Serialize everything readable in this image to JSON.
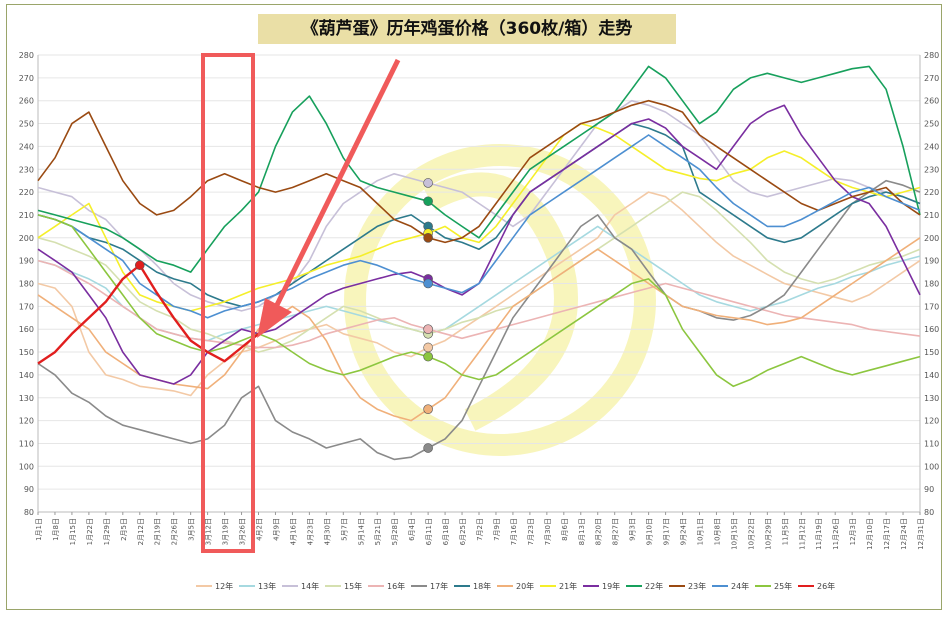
{
  "title": "《葫芦蛋》历年鸡蛋价格（360枚/箱）走势",
  "colors": {
    "frame": "#9aa56a",
    "title_bg": "#eadfa6",
    "highlight_box": "#f05a5a",
    "arrow": "#f05a5a",
    "watermark": "#f7f3b0"
  },
  "chart_data": {
    "type": "line",
    "title": "《葫芦蛋》历年鸡蛋价格（360枚/箱）走势",
    "xlabel": "",
    "ylabel": "",
    "ylim": [
      80,
      280
    ],
    "yticks": [
      80,
      90,
      100,
      110,
      120,
      130,
      140,
      150,
      160,
      170,
      180,
      190,
      200,
      210,
      220,
      230,
      240,
      250,
      260,
      270,
      280
    ],
    "grid": true,
    "legend_position": "bottom",
    "x_tick_labels": [
      "1月1日",
      "1月8日",
      "1月15日",
      "1月22日",
      "1月29日",
      "2月5日",
      "2月12日",
      "2月19日",
      "2月26日",
      "3月5日",
      "3月12日",
      "3月19日",
      "3月26日",
      "4月2日",
      "4月9日",
      "4月16日",
      "4月23日",
      "4月30日",
      "5月7日",
      "5月14日",
      "5月21日",
      "5月28日",
      "6月4日",
      "6月11日",
      "6月18日",
      "6月25日",
      "7月2日",
      "7月9日",
      "7月16日",
      "7月23日",
      "7月30日",
      "8月6日",
      "8月13日",
      "8月20日",
      "8月27日",
      "9月3日",
      "9月10日",
      "9月17日",
      "9月24日",
      "10月1日",
      "10月8日",
      "10月15日",
      "10月22日",
      "10月29日",
      "11月5日",
      "11月12日",
      "11月19日",
      "11月26日",
      "12月3日",
      "12月10日",
      "12月17日",
      "12月24日",
      "12月31日"
    ],
    "series": [
      {
        "name": "12年",
        "color": "#f3c9a5",
        "values": [
          180,
          178,
          170,
          150,
          140,
          138,
          135,
          134,
          133,
          131,
          140,
          146,
          150,
          152,
          155,
          158,
          160,
          162,
          158,
          156,
          154,
          150,
          148,
          152,
          155,
          160,
          165,
          170,
          175,
          180,
          185,
          190,
          195,
          200,
          210,
          215,
          220,
          218,
          212,
          205,
          198,
          192,
          188,
          184,
          180,
          178,
          176,
          174,
          172,
          175,
          180,
          185,
          190
        ]
      },
      {
        "name": "13年",
        "color": "#a6d9e0",
        "values": [
          190,
          188,
          185,
          182,
          178,
          170,
          165,
          160,
          158,
          156,
          155,
          158,
          160,
          162,
          164,
          166,
          168,
          170,
          168,
          166,
          164,
          162,
          160,
          158,
          160,
          165,
          170,
          175,
          180,
          185,
          190,
          195,
          200,
          205,
          200,
          195,
          190,
          185,
          180,
          175,
          172,
          170,
          168,
          170,
          172,
          175,
          178,
          180,
          183,
          185,
          188,
          190,
          192
        ]
      },
      {
        "name": "14年",
        "color": "#c7c0d8",
        "values": [
          222,
          220,
          218,
          212,
          208,
          200,
          195,
          188,
          180,
          175,
          172,
          170,
          168,
          170,
          175,
          180,
          190,
          205,
          215,
          220,
          225,
          228,
          226,
          224,
          222,
          220,
          215,
          210,
          205,
          210,
          220,
          230,
          240,
          250,
          255,
          260,
          258,
          255,
          250,
          245,
          235,
          225,
          220,
          218,
          220,
          222,
          224,
          226,
          225,
          222,
          220,
          218,
          215
        ]
      },
      {
        "name": "15年",
        "color": "#d5e0b0",
        "values": [
          200,
          198,
          195,
          192,
          188,
          180,
          172,
          168,
          165,
          160,
          158,
          155,
          153,
          150,
          152,
          155,
          160,
          165,
          170,
          168,
          165,
          162,
          160,
          158,
          160,
          163,
          165,
          168,
          170,
          175,
          180,
          185,
          190,
          195,
          200,
          205,
          210,
          215,
          220,
          218,
          212,
          205,
          198,
          190,
          185,
          182,
          180,
          182,
          185,
          188,
          190,
          192,
          195
        ]
      },
      {
        "name": "16年",
        "color": "#ecb4b4",
        "values": [
          190,
          188,
          184,
          180,
          175,
          170,
          165,
          160,
          158,
          156,
          155,
          154,
          153,
          152,
          152,
          153,
          155,
          158,
          160,
          162,
          164,
          165,
          162,
          160,
          158,
          156,
          158,
          160,
          162,
          164,
          166,
          168,
          170,
          172,
          174,
          176,
          178,
          180,
          178,
          176,
          174,
          172,
          170,
          168,
          166,
          165,
          164,
          163,
          162,
          160,
          159,
          158,
          157
        ]
      },
      {
        "name": "17年",
        "color": "#8a8a8a",
        "values": [
          145,
          140,
          132,
          128,
          122,
          118,
          116,
          114,
          112,
          110,
          112,
          118,
          130,
          135,
          120,
          115,
          112,
          108,
          110,
          112,
          106,
          103,
          104,
          108,
          112,
          120,
          135,
          150,
          165,
          175,
          185,
          195,
          205,
          210,
          200,
          195,
          185,
          175,
          170,
          168,
          165,
          164,
          166,
          170,
          175,
          185,
          195,
          205,
          215,
          220,
          225,
          223,
          220
        ]
      },
      {
        "name": "18年",
        "color": "#2d7a8c",
        "values": [
          210,
          208,
          205,
          200,
          198,
          195,
          190,
          185,
          182,
          180,
          175,
          172,
          170,
          172,
          175,
          180,
          185,
          190,
          195,
          200,
          205,
          208,
          210,
          205,
          200,
          198,
          195,
          200,
          210,
          220,
          225,
          230,
          235,
          240,
          245,
          250,
          248,
          245,
          240,
          220,
          215,
          210,
          205,
          200,
          198,
          200,
          205,
          210,
          215,
          218,
          220,
          218,
          215
        ]
      },
      {
        "name": "20年",
        "color": "#f0b07a",
        "values": [
          175,
          170,
          165,
          160,
          150,
          145,
          140,
          138,
          136,
          135,
          134,
          140,
          150,
          160,
          165,
          170,
          165,
          155,
          140,
          130,
          125,
          122,
          120,
          125,
          130,
          140,
          150,
          160,
          170,
          175,
          180,
          185,
          190,
          195,
          190,
          185,
          180,
          175,
          170,
          168,
          166,
          165,
          164,
          162,
          163,
          165,
          170,
          175,
          180,
          185,
          190,
          195,
          200
        ]
      },
      {
        "name": "21年",
        "color": "#f5ef2a",
        "values": [
          200,
          205,
          210,
          215,
          200,
          185,
          175,
          172,
          170,
          168,
          170,
          172,
          175,
          178,
          180,
          182,
          185,
          188,
          190,
          192,
          195,
          198,
          200,
          202,
          205,
          200,
          198,
          205,
          215,
          225,
          235,
          245,
          250,
          248,
          245,
          240,
          235,
          230,
          228,
          226,
          225,
          228,
          230,
          235,
          238,
          235,
          230,
          225,
          222,
          220,
          218,
          220,
          222
        ]
      },
      {
        "name": "19年",
        "color": "#7a2ea0",
        "values": [
          195,
          190,
          185,
          175,
          165,
          150,
          140,
          138,
          136,
          140,
          150,
          155,
          160,
          158,
          160,
          165,
          170,
          175,
          178,
          180,
          182,
          184,
          185,
          182,
          178,
          175,
          180,
          195,
          210,
          220,
          225,
          230,
          235,
          240,
          245,
          250,
          252,
          248,
          240,
          235,
          230,
          240,
          250,
          255,
          258,
          245,
          235,
          225,
          218,
          215,
          205,
          190,
          175
        ]
      },
      {
        "name": "22年",
        "color": "#17a05c",
        "values": [
          212,
          210,
          208,
          206,
          204,
          200,
          195,
          190,
          188,
          185,
          195,
          205,
          212,
          220,
          240,
          255,
          262,
          250,
          235,
          225,
          222,
          220,
          218,
          216,
          210,
          205,
          200,
          210,
          220,
          230,
          235,
          240,
          245,
          250,
          255,
          265,
          275,
          270,
          260,
          250,
          255,
          265,
          270,
          272,
          270,
          268,
          270,
          272,
          274,
          275,
          265,
          240,
          210
        ]
      },
      {
        "name": "23年",
        "color": "#9a4a12",
        "values": [
          225,
          235,
          250,
          255,
          240,
          225,
          215,
          210,
          212,
          218,
          225,
          228,
          225,
          222,
          220,
          222,
          225,
          228,
          225,
          222,
          215,
          208,
          205,
          200,
          198,
          200,
          205,
          215,
          225,
          235,
          240,
          245,
          250,
          252,
          255,
          258,
          260,
          258,
          255,
          245,
          240,
          235,
          230,
          225,
          220,
          215,
          212,
          215,
          218,
          220,
          222,
          215,
          210
        ]
      },
      {
        "name": "24年",
        "color": "#4d8fd1",
        "values": [
          210,
          208,
          205,
          200,
          195,
          190,
          180,
          175,
          170,
          168,
          165,
          168,
          170,
          172,
          175,
          178,
          182,
          185,
          188,
          190,
          188,
          185,
          182,
          180,
          178,
          176,
          180,
          190,
          200,
          210,
          215,
          220,
          225,
          230,
          235,
          240,
          245,
          240,
          235,
          230,
          222,
          215,
          210,
          205,
          205,
          208,
          212,
          216,
          220,
          222,
          218,
          215,
          212
        ]
      },
      {
        "name": "25年",
        "color": "#8cc63f",
        "values": [
          210,
          208,
          205,
          195,
          185,
          175,
          165,
          158,
          155,
          152,
          150,
          152,
          155,
          158,
          155,
          150,
          145,
          142,
          140,
          142,
          145,
          148,
          150,
          148,
          145,
          140,
          138,
          140,
          145,
          150,
          155,
          160,
          165,
          170,
          175,
          180,
          182,
          175,
          160,
          150,
          140,
          135,
          138,
          142,
          145,
          148,
          145,
          142,
          140,
          142,
          144,
          146,
          148
        ]
      },
      {
        "name": "26年",
        "color": "#e11e1e",
        "values": [
          145,
          150,
          158,
          165,
          172,
          182,
          188,
          176,
          165,
          155,
          150,
          146,
          152,
          158
        ]
      }
    ]
  },
  "legend": [
    {
      "label": "12年",
      "color": "#f3c9a5"
    },
    {
      "label": "13年",
      "color": "#a6d9e0"
    },
    {
      "label": "14年",
      "color": "#c7c0d8"
    },
    {
      "label": "15年",
      "color": "#d5e0b0"
    },
    {
      "label": "16年",
      "color": "#ecb4b4"
    },
    {
      "label": "17年",
      "color": "#8a8a8a"
    },
    {
      "label": "18年",
      "color": "#2d7a8c"
    },
    {
      "label": "20年",
      "color": "#f0b07a"
    },
    {
      "label": "21年",
      "color": "#f5ef2a"
    },
    {
      "label": "19年",
      "color": "#7a2ea0"
    },
    {
      "label": "22年",
      "color": "#17a05c"
    },
    {
      "label": "23年",
      "color": "#9a4a12"
    },
    {
      "label": "24年",
      "color": "#4d8fd1"
    },
    {
      "label": "25年",
      "color": "#8cc63f"
    },
    {
      "label": "26年",
      "color": "#e11e1e"
    }
  ]
}
